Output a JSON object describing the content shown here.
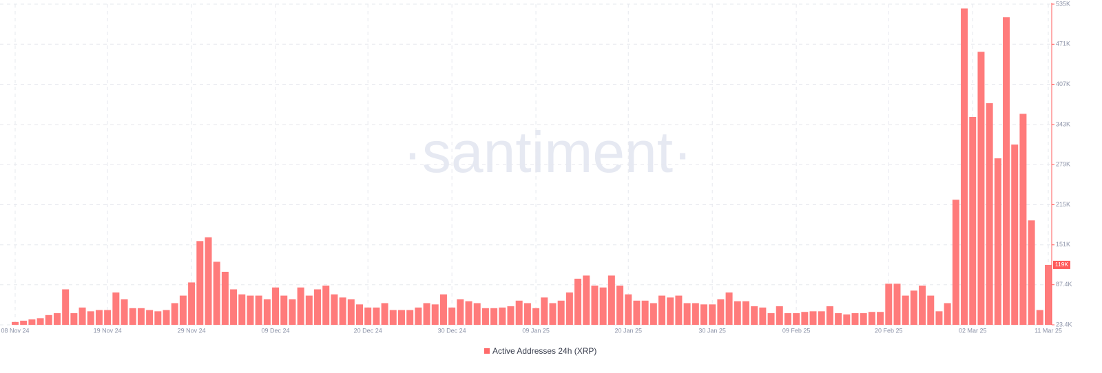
{
  "chart_data": {
    "type": "bar",
    "watermark": "·santiment·",
    "color": "#ff7b7b",
    "axis_color": "#ff5a5a",
    "grid": true,
    "categories": [
      "08 Nov 24",
      null,
      null,
      null,
      null,
      null,
      null,
      null,
      null,
      null,
      null,
      "19 Nov 24",
      null,
      null,
      null,
      null,
      null,
      null,
      null,
      null,
      null,
      "29 Nov 24",
      null,
      null,
      null,
      null,
      null,
      null,
      null,
      null,
      null,
      "09 Dec 24",
      null,
      null,
      null,
      null,
      null,
      null,
      null,
      null,
      null,
      null,
      "20 Dec 24",
      null,
      null,
      null,
      null,
      null,
      null,
      null,
      null,
      null,
      "30 Dec 24",
      null,
      null,
      null,
      null,
      null,
      null,
      null,
      null,
      null,
      "09 Jan 25",
      null,
      null,
      null,
      null,
      null,
      null,
      null,
      null,
      null,
      null,
      "20 Jan 25",
      null,
      null,
      null,
      null,
      null,
      null,
      null,
      null,
      null,
      "30 Jan 25",
      null,
      null,
      null,
      null,
      null,
      null,
      null,
      null,
      null,
      "09 Feb 25",
      null,
      null,
      null,
      null,
      null,
      null,
      null,
      null,
      null,
      null,
      "20 Feb 25",
      null,
      null,
      null,
      null,
      null,
      null,
      null,
      null,
      null,
      "02 Mar 25",
      null,
      null,
      null,
      null,
      null,
      null,
      null,
      null,
      "11 Mar 25"
    ],
    "series": [
      {
        "name": "Active Addresses 24h (XRP)",
        "color": "#ff6b6b",
        "values": [
          28000,
          30000,
          32000,
          34000,
          39000,
          42000,
          80000,
          42000,
          51000,
          45000,
          47000,
          47000,
          75000,
          64000,
          50000,
          50000,
          47000,
          45000,
          47000,
          58000,
          70000,
          91000,
          157000,
          163000,
          124000,
          108000,
          80000,
          72000,
          70000,
          70000,
          64000,
          83000,
          70000,
          64000,
          83000,
          70000,
          80000,
          86000,
          72000,
          67000,
          64000,
          56000,
          51000,
          51000,
          58000,
          47000,
          47000,
          47000,
          51000,
          58000,
          56000,
          72000,
          51000,
          64000,
          61000,
          58000,
          50000,
          50000,
          51000,
          53000,
          62000,
          58000,
          50000,
          67000,
          58000,
          62000,
          75000,
          97000,
          102000,
          86000,
          83000,
          102000,
          86000,
          72000,
          62000,
          62000,
          58000,
          70000,
          67000,
          70000,
          58000,
          58000,
          56000,
          56000,
          64000,
          75000,
          61000,
          61000,
          53000,
          51000,
          42000,
          53000,
          42000,
          42000,
          44000,
          45000,
          45000,
          53000,
          42000,
          40000,
          42000,
          42000,
          44000,
          44000,
          89000,
          89000,
          70000,
          78000,
          86000,
          70000,
          45000,
          58000,
          223000,
          528000,
          355000,
          459000,
          377000,
          289000,
          514000,
          311000,
          360000,
          190000,
          47000,
          119000
        ]
      }
    ],
    "last_value_label": "119K",
    "ylim": [
      23400,
      535000
    ],
    "yticks": [
      {
        "value": 23400,
        "label": "23.4K"
      },
      {
        "value": 87400,
        "label": "87.4K"
      },
      {
        "value": 151000,
        "label": "151K"
      },
      {
        "value": 215000,
        "label": "215K"
      },
      {
        "value": 279000,
        "label": "279K"
      },
      {
        "value": 343000,
        "label": "343K"
      },
      {
        "value": 407000,
        "label": "407K"
      },
      {
        "value": 471000,
        "label": "471K"
      },
      {
        "value": 535000,
        "label": "535K"
      }
    ]
  }
}
